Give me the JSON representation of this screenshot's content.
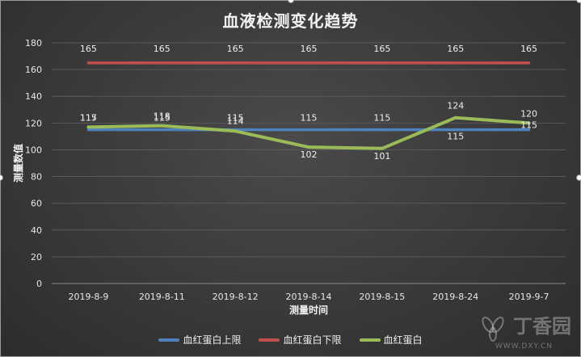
{
  "chart_data": {
    "type": "line",
    "title": "血液检测变化趋势",
    "xlabel": "测量时间",
    "ylabel": "测量数值",
    "ylim": [
      0,
      180
    ],
    "yticks": [
      0,
      20,
      40,
      60,
      80,
      100,
      120,
      140,
      160,
      180
    ],
    "grid": true,
    "legend_position": "bottom",
    "categories": [
      "2019-8-9",
      "2019-8-11",
      "2019-8-12",
      "2019-8-14",
      "2019-8-15",
      "2019-8-24",
      "2019-9-7"
    ],
    "series": [
      {
        "name": "血红蛋白上限",
        "color": "#4f81bd",
        "values": [
          115,
          115,
          115,
          115,
          115,
          115,
          115
        ]
      },
      {
        "name": "血红蛋白下限",
        "color": "#c0504d",
        "values": [
          165,
          165,
          165,
          165,
          165,
          165,
          165
        ]
      },
      {
        "name": "血红蛋白",
        "color": "#9bbb59",
        "values": [
          117,
          118,
          114,
          102,
          101,
          124,
          120
        ]
      }
    ]
  },
  "watermark": {
    "name": "丁香园",
    "url": "WWW.DXY.CN",
    "icon": "flower-logo-icon"
  }
}
